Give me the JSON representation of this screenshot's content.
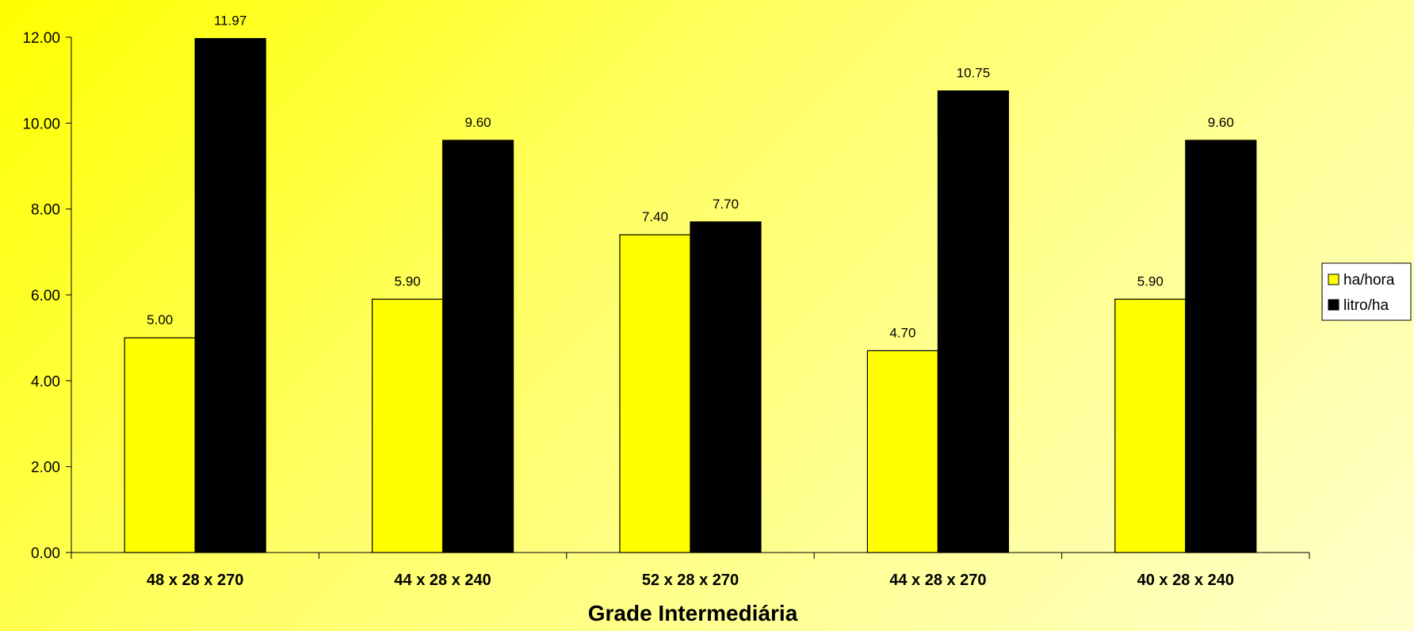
{
  "chart_data": {
    "type": "bar",
    "xlabel": "Grade Intermediária",
    "ylabel": "",
    "ylim": [
      0,
      12
    ],
    "yticks": [
      "0.00",
      "2.00",
      "4.00",
      "6.00",
      "8.00",
      "10.00",
      "12.00"
    ],
    "categories": [
      "48 x 28 x 270",
      "44 x 28 x 240",
      "52 x 28 x 270",
      "44 x 28 x 270",
      "40 x 28 x 240"
    ],
    "series": [
      {
        "name": "ha/hora",
        "color": "#ffff00",
        "values": [
          5.0,
          5.9,
          7.4,
          4.7,
          5.9
        ],
        "labels": [
          "5.00",
          "5.90",
          "7.40",
          "4.70",
          "5.90"
        ]
      },
      {
        "name": "litro/ha",
        "color": "#000000",
        "values": [
          11.97,
          9.6,
          7.7,
          10.75,
          9.6
        ],
        "labels": [
          "11.97",
          "9.60",
          "7.70",
          "10.75",
          "9.60"
        ]
      }
    ],
    "legend_position": "right",
    "grid": false,
    "background": "#ffff66"
  }
}
